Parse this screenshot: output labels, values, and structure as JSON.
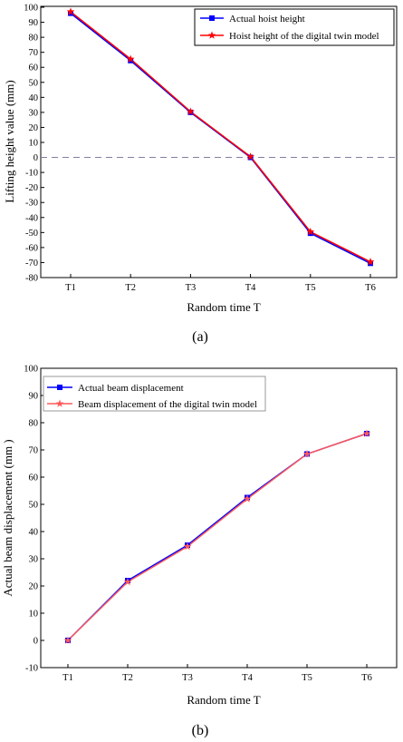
{
  "chart_data": [
    {
      "type": "line",
      "caption": "(a)",
      "categories": [
        "T1",
        "T2",
        "T3",
        "T4",
        "T5",
        "T6"
      ],
      "series": [
        {
          "name": "Actual hoist height",
          "color": "#0000ff",
          "marker": "square",
          "values": [
            96,
            64.5,
            30,
            0,
            -50.5,
            -70.5
          ]
        },
        {
          "name": "Hoist height of the digital twin model",
          "color": "#ff0000",
          "marker": "star",
          "values": [
            97,
            65.5,
            30.5,
            0.5,
            -49.5,
            -69.5
          ]
        }
      ],
      "xlabel": "Random time T",
      "ylabel": "Lifting height value (mm)",
      "ylim": [
        -80,
        100
      ],
      "yticks": [
        100,
        90,
        80,
        70,
        60,
        50,
        40,
        30,
        20,
        10,
        0,
        -10,
        -20,
        -30,
        -40,
        -50,
        -60,
        -70,
        -80
      ],
      "reference_line": 0,
      "grid": false,
      "legend_position": "top-right"
    },
    {
      "type": "line",
      "caption": "(b)",
      "categories": [
        "T1",
        "T2",
        "T3",
        "T4",
        "T5",
        "T6"
      ],
      "series": [
        {
          "name": "Actual beam displacement",
          "color": "#0000ff",
          "marker": "square",
          "values": [
            0,
            22,
            35,
            52.5,
            68.5,
            76
          ]
        },
        {
          "name": "Beam displacement of the digital twin model",
          "color": "#ff5a5a",
          "marker": "star",
          "values": [
            0,
            21.5,
            34.5,
            52,
            68.5,
            76
          ]
        }
      ],
      "xlabel": "Random time T",
      "ylabel": "Actual beam displacement (mm )",
      "ylim": [
        -10,
        100
      ],
      "yticks": [
        100,
        90,
        80,
        70,
        60,
        50,
        40,
        30,
        20,
        10,
        0,
        -10
      ],
      "grid": false,
      "legend_position": "top-left"
    }
  ]
}
